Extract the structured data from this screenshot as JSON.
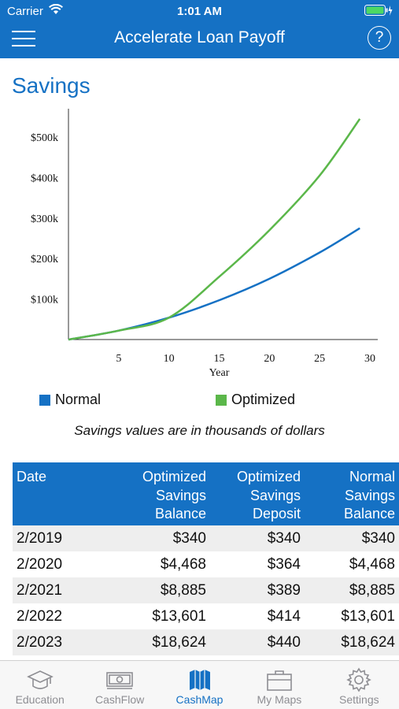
{
  "status": {
    "carrier": "Carrier",
    "time": "1:01 AM"
  },
  "nav": {
    "title": "Accelerate Loan Payoff",
    "help": "?"
  },
  "section_title": "Savings",
  "chart_data": {
    "type": "line",
    "xlabel": "Year",
    "x_ticks": [
      5,
      10,
      15,
      20,
      25,
      30
    ],
    "y_ticks": [
      "$100k",
      "$200k",
      "$300k",
      "$400k",
      "$500k"
    ],
    "xlim": [
      0,
      30
    ],
    "ylim": [
      0,
      570
    ],
    "series": [
      {
        "name": "Normal",
        "color": "#1571c4",
        "x": [
          0,
          5,
          10,
          15,
          20,
          25,
          29
        ],
        "y": [
          0,
          22,
          54,
          97,
          150,
          215,
          275
        ]
      },
      {
        "name": "Optimized",
        "color": "#5bb74a",
        "x": [
          0,
          5,
          10,
          15,
          20,
          25,
          29
        ],
        "y": [
          0,
          22,
          54,
          155,
          270,
          405,
          545
        ]
      }
    ]
  },
  "note": "Savings values are in thousands of dollars",
  "table": {
    "headers": [
      [
        "Date"
      ],
      [
        "Optimized",
        "Savings",
        "Balance"
      ],
      [
        "Optimized",
        "Savings",
        "Deposit"
      ],
      [
        "Normal",
        "Savings",
        "Balance"
      ]
    ],
    "rows": [
      [
        "2/2019",
        "$340",
        "$340",
        "$340"
      ],
      [
        "2/2020",
        "$4,468",
        "$364",
        "$4,468"
      ],
      [
        "2/2021",
        "$8,885",
        "$389",
        "$8,885"
      ],
      [
        "2/2022",
        "$13,601",
        "$414",
        "$13,601"
      ],
      [
        "2/2023",
        "$18,624",
        "$440",
        "$18,624"
      ]
    ]
  },
  "tabs": [
    {
      "label": "Education",
      "icon": "graduation-cap-icon",
      "active": false
    },
    {
      "label": "CashFlow",
      "icon": "cash-icon",
      "active": false
    },
    {
      "label": "CashMap",
      "icon": "map-icon",
      "active": true
    },
    {
      "label": "My Maps",
      "icon": "briefcase-icon",
      "active": false
    },
    {
      "label": "Settings",
      "icon": "gear-icon",
      "active": false
    }
  ]
}
